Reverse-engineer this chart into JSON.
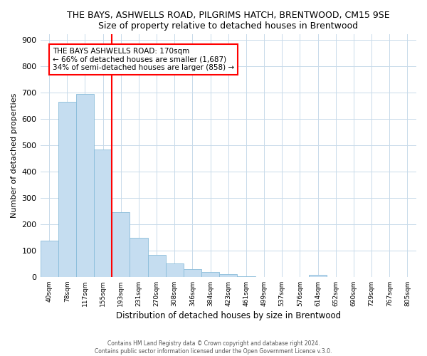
{
  "title": "THE BAYS, ASHWELLS ROAD, PILGRIMS HATCH, BRENTWOOD, CM15 9SE",
  "subtitle": "Size of property relative to detached houses in Brentwood",
  "xlabel": "Distribution of detached houses by size in Brentwood",
  "ylabel": "Number of detached properties",
  "bin_labels": [
    "40sqm",
    "78sqm",
    "117sqm",
    "155sqm",
    "193sqm",
    "231sqm",
    "270sqm",
    "308sqm",
    "346sqm",
    "384sqm",
    "423sqm",
    "461sqm",
    "499sqm",
    "537sqm",
    "576sqm",
    "614sqm",
    "652sqm",
    "690sqm",
    "729sqm",
    "767sqm",
    "805sqm"
  ],
  "bar_heights": [
    138,
    665,
    693,
    483,
    246,
    148,
    84,
    50,
    29,
    18,
    10,
    3,
    0,
    0,
    0,
    8,
    0,
    0,
    0,
    0,
    0
  ],
  "bar_color": "#c5ddf0",
  "bar_edge_color": "#8abcda",
  "vline_color": "red",
  "vline_pos": 3.5,
  "annotation_text": "THE BAYS ASHWELLS ROAD: 170sqm\n← 66% of detached houses are smaller (1,687)\n34% of semi-detached houses are larger (858) →",
  "annotation_box_color": "white",
  "annotation_box_edge": "red",
  "ylim": [
    0,
    920
  ],
  "yticks": [
    0,
    100,
    200,
    300,
    400,
    500,
    600,
    700,
    800,
    900
  ],
  "footer1": "Contains HM Land Registry data © Crown copyright and database right 2024.",
  "footer2": "Contains public sector information licensed under the Open Government Licence v.3.0.",
  "bg_color": "#ffffff",
  "plot_bg_color": "#ffffff",
  "grid_color": "#c8daea",
  "title_fontsize": 9,
  "subtitle_fontsize": 9
}
